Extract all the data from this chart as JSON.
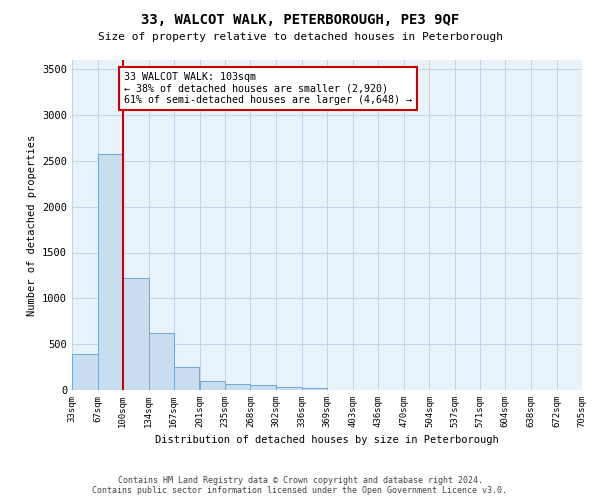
{
  "title": "33, WALCOT WALK, PETERBOROUGH, PE3 9QF",
  "subtitle": "Size of property relative to detached houses in Peterborough",
  "xlabel": "Distribution of detached houses by size in Peterborough",
  "ylabel": "Number of detached properties",
  "footer_line1": "Contains HM Land Registry data © Crown copyright and database right 2024.",
  "footer_line2": "Contains public sector information licensed under the Open Government Licence v3.0.",
  "bar_color": "#c9ddf0",
  "bar_edge_color": "#6fa8d4",
  "grid_color": "#c0d4e8",
  "background_color": "#e8f2fb",
  "vline_x": 100,
  "vline_color": "#cc0000",
  "annotation_line1": "33 WALCOT WALK: 103sqm",
  "annotation_line2": "← 38% of detached houses are smaller (2,920)",
  "annotation_line3": "61% of semi-detached houses are larger (4,648) →",
  "annotation_box_color": "#ffffff",
  "annotation_border_color": "#cc0000",
  "bins": [
    33,
    67,
    100,
    134,
    167,
    201,
    235,
    268,
    302,
    336,
    369,
    403,
    436,
    470,
    504,
    537,
    571,
    604,
    638,
    672,
    705
  ],
  "bar_heights": [
    395,
    2580,
    1220,
    620,
    250,
    100,
    70,
    58,
    38,
    18,
    5,
    3,
    2,
    1,
    0,
    0,
    0,
    0,
    0,
    0
  ],
  "ylim": [
    0,
    3600
  ],
  "yticks": [
    0,
    500,
    1000,
    1500,
    2000,
    2500,
    3000,
    3500
  ]
}
